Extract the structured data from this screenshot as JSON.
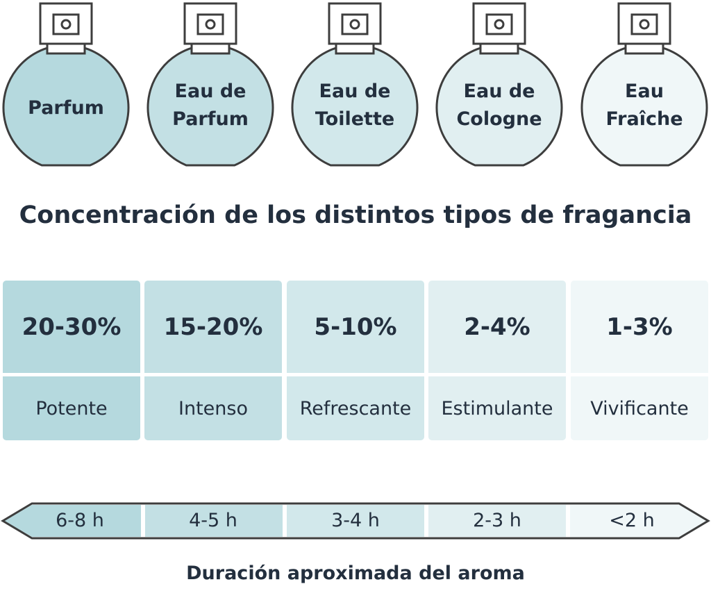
{
  "bottles": [
    {
      "label_line1": "Parfum",
      "label_line2": "",
      "color": "#b5d9de"
    },
    {
      "label_line1": "Eau de",
      "label_line2": "Parfum",
      "color": "#c3e0e4"
    },
    {
      "label_line1": "Eau de",
      "label_line2": "Toilette",
      "color": "#d2e8eb"
    },
    {
      "label_line1": "Eau de",
      "label_line2": "Cologne",
      "color": "#e1eff1"
    },
    {
      "label_line1": "Eau",
      "label_line2": "Fraîche",
      "color": "#f0f7f8"
    }
  ],
  "title": "Concentración de los distintos tipos de fragancia",
  "concentrations": [
    {
      "percent": "20-30%",
      "descriptor": "Potente",
      "color_top": "#b5d9de",
      "color_bottom": "#b5d9de"
    },
    {
      "percent": "15-20%",
      "descriptor": "Intenso",
      "color_top": "#c3e0e4",
      "color_bottom": "#c3e0e4"
    },
    {
      "percent": "5-10%",
      "descriptor": "Refrescante",
      "color_top": "#d2e8eb",
      "color_bottom": "#d2e8eb"
    },
    {
      "percent": "2-4%",
      "descriptor": "Estimulante",
      "color_top": "#e1eff1",
      "color_bottom": "#e1eff1"
    },
    {
      "percent": "1-3%",
      "descriptor": "Vivificante",
      "color_top": "#f0f7f8",
      "color_bottom": "#f0f7f8"
    }
  ],
  "durations": [
    {
      "label": "6-8 h",
      "color": "#b5d9de"
    },
    {
      "label": "4-5 h",
      "color": "#c3e0e4"
    },
    {
      "label": "3-4 h",
      "color": "#d2e8eb"
    },
    {
      "label": "2-3 h",
      "color": "#e1eff1"
    },
    {
      "label": "<2 h",
      "color": "#f0f7f8"
    }
  ],
  "duration_title": "Duración aproximada del aroma",
  "colors": {
    "outline": "#3d3d3d",
    "text": "#232f3e"
  }
}
